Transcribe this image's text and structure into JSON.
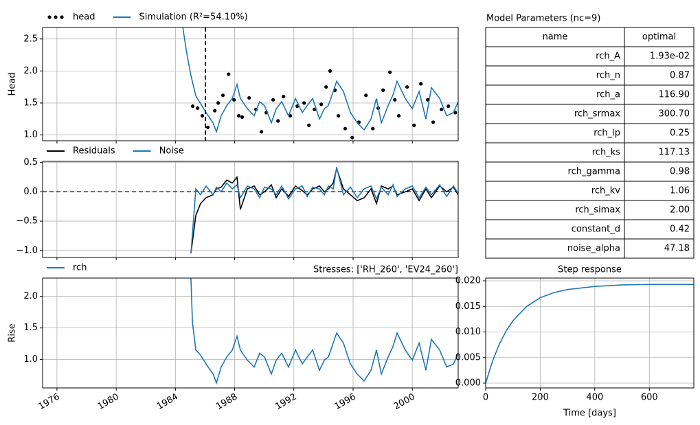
{
  "chart_data": [
    {
      "type": "line",
      "ylabel": "Head",
      "legend": "above",
      "grid": true,
      "xticklabels": false,
      "xlim": [
        1975.03,
        2003.1
      ],
      "ylim": [
        0.91,
        2.68
      ],
      "xticks": [
        1976,
        1980,
        1984,
        1988,
        1992,
        1996,
        2000
      ],
      "yticks": [
        {
          "value": 1.0,
          "label": "1.0"
        },
        1.5,
        {
          "value": 2.0,
          "label": "2.0"
        },
        2.5
      ],
      "vline": 1986.03,
      "series": [
        {
          "name": "head",
          "color": "#000000",
          "marker": "dot",
          "x": [
            1985.17,
            1985.5,
            1985.82,
            1986.19,
            1986.66,
            1986.89,
            1987.21,
            1987.59,
            1987.96,
            1988.28,
            1988.51,
            1988.98,
            1989.44,
            1989.81,
            1990.14,
            1990.6,
            1990.93,
            1991.3,
            1991.76,
            1992.23,
            1992.69,
            1993.02,
            1993.39,
            1993.85,
            1994.18,
            1994.45,
            1994.78,
            1995.01,
            1995.47,
            1995.94,
            1996.4,
            1996.87,
            1997.33,
            1997.7,
            1998.03,
            1998.49,
            1998.82,
            1999.09,
            1999.65,
            2000.12,
            2000.58,
            2001.04,
            2001.41,
            2001.97,
            2002.44,
            2002.9
          ],
          "values": [
            1.45,
            1.42,
            1.3,
            1.12,
            1.38,
            1.5,
            1.62,
            1.95,
            1.55,
            1.3,
            1.28,
            1.58,
            1.4,
            1.05,
            1.35,
            1.55,
            1.22,
            1.6,
            1.3,
            1.45,
            1.5,
            1.15,
            1.4,
            1.48,
            1.75,
            2.0,
            1.7,
            1.3,
            1.1,
            0.96,
            1.2,
            1.62,
            1.1,
            1.42,
            1.7,
            1.98,
            1.55,
            1.3,
            1.75,
            1.15,
            1.8,
            1.55,
            1.2,
            1.4,
            1.45,
            1.35
          ]
        },
        {
          "name": "Simulation (R²=54.10%)",
          "color": "#1f77b4",
          "x": [
            1984.5,
            1984.78,
            1985.05,
            1985.38,
            1985.7,
            1986.07,
            1986.54,
            1986.77,
            1987.09,
            1987.47,
            1987.84,
            1988.16,
            1988.39,
            1988.86,
            1989.32,
            1989.69,
            1990.02,
            1990.48,
            1990.81,
            1991.18,
            1991.64,
            1992.11,
            1992.57,
            1992.9,
            1993.27,
            1993.73,
            1994.06,
            1994.33,
            1994.66,
            1994.89,
            1995.35,
            1995.82,
            1996.28,
            1996.75,
            1997.21,
            1997.58,
            1997.91,
            1998.37,
            1998.7,
            1998.97,
            1999.53,
            2000.0,
            2000.46,
            2000.92,
            2001.29,
            2001.85,
            2002.32,
            2002.78,
            2003.1
          ],
          "values": [
            2.68,
            2.26,
            1.93,
            1.61,
            1.49,
            1.35,
            1.19,
            1.05,
            1.3,
            1.46,
            1.57,
            1.79,
            1.57,
            1.41,
            1.3,
            1.52,
            1.46,
            1.19,
            1.41,
            1.52,
            1.3,
            1.57,
            1.35,
            1.46,
            1.57,
            1.25,
            1.41,
            1.46,
            1.68,
            1.84,
            1.68,
            1.35,
            1.19,
            1.08,
            1.25,
            1.57,
            1.19,
            1.46,
            1.63,
            1.84,
            1.57,
            1.41,
            1.68,
            1.25,
            1.74,
            1.57,
            1.3,
            1.35,
            1.52
          ]
        }
      ]
    },
    {
      "type": "line",
      "legend": "above",
      "grid": true,
      "xticklabels": false,
      "xlim": [
        1975.03,
        2003.1
      ],
      "ylim": [
        -1.12,
        0.52
      ],
      "xticks": [
        1976,
        1980,
        1984,
        1988,
        1992,
        1996,
        2000
      ],
      "yticks": [
        {
          "value": -1.0,
          "label": "−1.0"
        },
        {
          "value": -0.5,
          "label": "−0.5"
        },
        {
          "value": 0.0,
          "label": "0.0"
        },
        0.5
      ],
      "hline": 0,
      "x": [
        1985.05,
        1985.38,
        1985.7,
        1986.07,
        1986.54,
        1986.77,
        1987.09,
        1987.47,
        1987.84,
        1988.16,
        1988.39,
        1988.86,
        1989.32,
        1989.69,
        1990.02,
        1990.48,
        1990.81,
        1991.18,
        1991.64,
        1992.11,
        1992.57,
        1992.9,
        1993.27,
        1993.73,
        1994.06,
        1994.33,
        1994.66,
        1994.89,
        1995.35,
        1995.82,
        1996.28,
        1996.75,
        1997.21,
        1997.58,
        1997.91,
        1998.37,
        1998.7,
        1998.97,
        1999.53,
        2000.0,
        2000.46,
        2000.92,
        2001.29,
        2001.85,
        2002.32,
        2002.78,
        2003.1
      ],
      "series": [
        {
          "name": "Residuals",
          "color": "#000000",
          "values": [
            -1.05,
            -0.4,
            -0.2,
            -0.1,
            -0.05,
            0.05,
            0.08,
            0.2,
            0.15,
            0.25,
            -0.3,
            0.05,
            0.1,
            -0.05,
            0.0,
            0.12,
            -0.1,
            0.05,
            -0.08,
            0.1,
            0.02,
            -0.05,
            0.05,
            0.1,
            0.0,
            0.05,
            0.15,
            0.4,
            0.05,
            -0.05,
            -0.15,
            -0.1,
            0.05,
            -0.2,
            0.1,
            0.05,
            0.1,
            -0.05,
            0.0,
            0.05,
            -0.15,
            0.05,
            -0.1,
            0.1,
            0.0,
            0.08,
            -0.05
          ]
        },
        {
          "name": "Noise",
          "color": "#1f77b4",
          "values": [
            -1.05,
            0.05,
            -0.05,
            0.1,
            -0.05,
            0.08,
            0.0,
            0.15,
            0.05,
            0.12,
            -0.1,
            0.1,
            0.05,
            -0.1,
            0.08,
            0.05,
            -0.05,
            0.1,
            -0.12,
            0.05,
            0.1,
            -0.08,
            0.08,
            0.05,
            -0.05,
            0.1,
            0.05,
            0.42,
            -0.05,
            0.08,
            -0.1,
            0.05,
            0.1,
            -0.12,
            0.08,
            -0.05,
            0.12,
            -0.08,
            0.05,
            0.1,
            -0.1,
            0.08,
            -0.05,
            0.12,
            -0.08,
            0.1,
            -0.03
          ]
        }
      ]
    },
    {
      "type": "line",
      "ylabel": "Rise",
      "legend": "above",
      "grid": true,
      "xtick_rotation": 30,
      "title": "Stresses: ['RH_260', 'EV24_260']",
      "title_loc": "right",
      "xlim": [
        1975.03,
        2003.1
      ],
      "ylim": [
        0.55,
        2.29
      ],
      "xticks": [
        1976,
        1980,
        1984,
        1988,
        1992,
        1996,
        2000
      ],
      "yticks": [
        {
          "value": 1.0,
          "label": "1.0"
        },
        1.5,
        {
          "value": 2.0,
          "label": "2.0"
        }
      ],
      "series": [
        {
          "name": "rch",
          "color": "#1f77b4",
          "x": [
            1985.05,
            1985.15,
            1985.38,
            1985.7,
            1986.07,
            1986.54,
            1986.77,
            1987.09,
            1987.47,
            1987.84,
            1988.16,
            1988.39,
            1988.86,
            1989.32,
            1989.69,
            1990.02,
            1990.48,
            1990.81,
            1991.18,
            1991.64,
            1992.11,
            1992.57,
            1992.9,
            1993.27,
            1993.73,
            1994.06,
            1994.33,
            1994.66,
            1994.89,
            1995.35,
            1995.82,
            1996.28,
            1996.75,
            1997.21,
            1997.58,
            1997.91,
            1998.37,
            1998.7,
            1998.97,
            1999.53,
            2000.0,
            2000.46,
            2000.92,
            2001.29,
            2001.85,
            2002.32,
            2002.78,
            2003.1
          ],
          "values": [
            2.29,
            1.59,
            1.15,
            1.07,
            0.93,
            0.77,
            0.63,
            0.88,
            1.04,
            1.15,
            1.37,
            1.15,
            0.99,
            0.88,
            1.1,
            1.04,
            0.77,
            0.99,
            1.1,
            0.88,
            1.15,
            0.93,
            1.04,
            1.15,
            0.83,
            0.99,
            1.04,
            1.26,
            1.42,
            1.26,
            0.93,
            0.77,
            0.66,
            0.83,
            1.15,
            0.77,
            1.04,
            1.21,
            1.42,
            1.15,
            0.99,
            1.26,
            0.83,
            1.32,
            1.15,
            0.88,
            0.93,
            1.1
          ]
        }
      ]
    },
    {
      "type": "line",
      "title": "Step response",
      "title_loc": "center",
      "xlabel": "Time [days]",
      "grid": true,
      "color": "#1f77b4",
      "xlim": [
        0,
        763
      ],
      "ylim": [
        -0.00094,
        0.02054
      ],
      "xticks": [
        0,
        200,
        400,
        600
      ],
      "yticks": [
        {
          "value": 0.0,
          "label": "0.000"
        },
        {
          "value": 0.005,
          "label": "0.005"
        },
        {
          "value": 0.01,
          "label": "0.010"
        },
        {
          "value": 0.015,
          "label": "0.015"
        },
        {
          "value": 0.02,
          "label": "0.020"
        }
      ],
      "x": [
        0,
        25,
        50,
        75,
        100,
        150,
        200,
        250,
        300,
        400,
        500,
        600,
        763
      ],
      "values": [
        0,
        0.0043,
        0.0076,
        0.0102,
        0.0122,
        0.015,
        0.0167,
        0.0177,
        0.0183,
        0.0189,
        0.0192,
        0.0193,
        0.0193
      ]
    }
  ],
  "table": {
    "title": "Model Parameters (nc=9)",
    "columns": [
      "name",
      "optimal"
    ],
    "rows": [
      [
        "rch_A",
        "1.93e-02"
      ],
      [
        "rch_n",
        "0.87"
      ],
      [
        "rch_a",
        "116.90"
      ],
      [
        "rch_srmax",
        "300.70"
      ],
      [
        "rch_lp",
        "0.25"
      ],
      [
        "rch_ks",
        "117.13"
      ],
      [
        "rch_gamma",
        "0.98"
      ],
      [
        "rch_kv",
        "1.06"
      ],
      [
        "rch_simax",
        "2.00"
      ],
      [
        "constant_d",
        "0.42"
      ],
      [
        "noise_alpha",
        "47.18"
      ]
    ]
  }
}
